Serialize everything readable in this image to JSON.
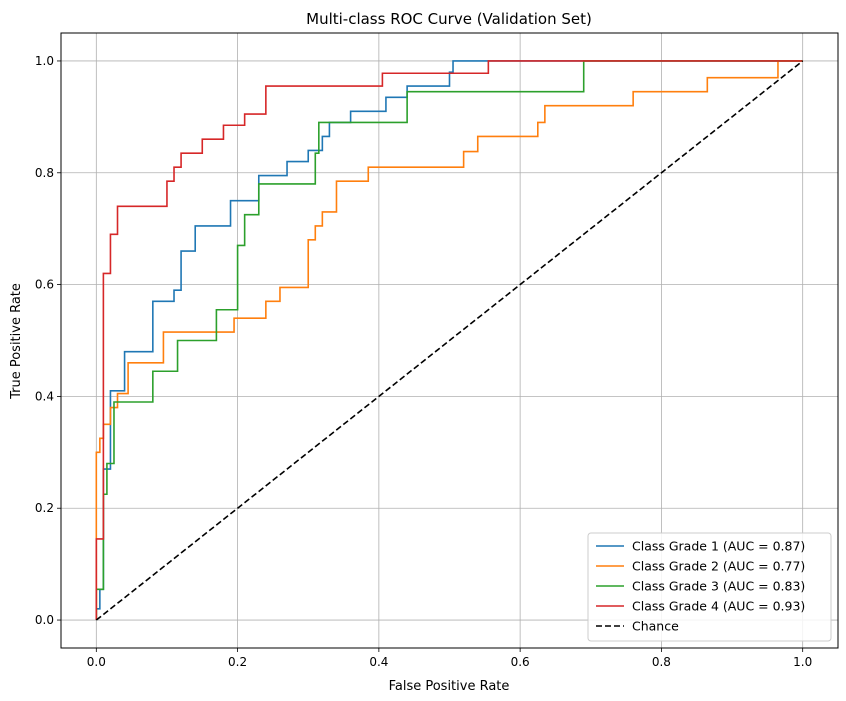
{
  "chart_data": {
    "type": "line",
    "title": "Multi-class ROC Curve (Validation Set)",
    "xlabel": "False Positive Rate",
    "ylabel": "True Positive Rate",
    "xlim": [
      -0.05,
      1.05
    ],
    "ylim": [
      -0.05,
      1.05
    ],
    "xticks": [
      0.0,
      0.2,
      0.4,
      0.6,
      0.8,
      1.0
    ],
    "yticks": [
      0.0,
      0.2,
      0.4,
      0.6,
      0.8,
      1.0
    ],
    "xtick_labels": [
      "0.0",
      "0.2",
      "0.4",
      "0.6",
      "0.8",
      "1.0"
    ],
    "ytick_labels": [
      "0.0",
      "0.2",
      "0.4",
      "0.6",
      "0.8",
      "1.0"
    ],
    "grid": true,
    "legend_position": "lower-right",
    "series": [
      {
        "name": "Class Grade 1 (AUC = 0.87)",
        "color": "#1f77b4",
        "style": "solid",
        "x": [
          0.0,
          0.0,
          0.005,
          0.005,
          0.01,
          0.01,
          0.02,
          0.02,
          0.04,
          0.04,
          0.055,
          0.055,
          0.08,
          0.08,
          0.11,
          0.11,
          0.12,
          0.12,
          0.14,
          0.14,
          0.19,
          0.19,
          0.23,
          0.23,
          0.24,
          0.24,
          0.27,
          0.27,
          0.3,
          0.3,
          0.32,
          0.32,
          0.33,
          0.33,
          0.36,
          0.36,
          0.41,
          0.41,
          0.44,
          0.44,
          0.5,
          0.5,
          0.505,
          0.505,
          1.0
        ],
        "y": [
          0.0,
          0.02,
          0.02,
          0.055,
          0.055,
          0.27,
          0.27,
          0.41,
          0.41,
          0.48,
          0.48,
          0.48,
          0.48,
          0.57,
          0.57,
          0.59,
          0.59,
          0.66,
          0.66,
          0.705,
          0.705,
          0.75,
          0.75,
          0.795,
          0.795,
          0.795,
          0.795,
          0.82,
          0.82,
          0.84,
          0.84,
          0.865,
          0.865,
          0.89,
          0.89,
          0.91,
          0.91,
          0.935,
          0.935,
          0.955,
          0.955,
          0.98,
          0.98,
          1.0,
          1.0
        ]
      },
      {
        "name": "Class Grade 2 (AUC = 0.77)",
        "color": "#ff7f0e",
        "style": "solid",
        "x": [
          0.0,
          0.0,
          0.005,
          0.005,
          0.01,
          0.01,
          0.02,
          0.02,
          0.03,
          0.03,
          0.045,
          0.045,
          0.095,
          0.095,
          0.195,
          0.195,
          0.24,
          0.24,
          0.26,
          0.26,
          0.3,
          0.3,
          0.31,
          0.31,
          0.32,
          0.32,
          0.34,
          0.34,
          0.385,
          0.385,
          0.52,
          0.52,
          0.54,
          0.54,
          0.625,
          0.625,
          0.635,
          0.635,
          0.76,
          0.76,
          0.865,
          0.865,
          0.965,
          0.965,
          1.0
        ],
        "y": [
          0.0,
          0.3,
          0.3,
          0.325,
          0.325,
          0.35,
          0.35,
          0.38,
          0.38,
          0.405,
          0.405,
          0.46,
          0.46,
          0.515,
          0.515,
          0.54,
          0.54,
          0.57,
          0.57,
          0.595,
          0.595,
          0.68,
          0.68,
          0.705,
          0.705,
          0.73,
          0.73,
          0.785,
          0.785,
          0.81,
          0.81,
          0.838,
          0.838,
          0.865,
          0.865,
          0.89,
          0.89,
          0.92,
          0.92,
          0.945,
          0.945,
          0.97,
          0.97,
          1.0,
          1.0
        ]
      },
      {
        "name": "Class Grade 3 (AUC = 0.83)",
        "color": "#2ca02c",
        "style": "solid",
        "x": [
          0.0,
          0.0,
          0.01,
          0.01,
          0.015,
          0.015,
          0.025,
          0.025,
          0.04,
          0.04,
          0.08,
          0.08,
          0.115,
          0.115,
          0.17,
          0.17,
          0.2,
          0.2,
          0.21,
          0.21,
          0.23,
          0.23,
          0.31,
          0.31,
          0.315,
          0.315,
          0.44,
          0.44,
          0.69,
          0.69,
          1.0
        ],
        "y": [
          0.0,
          0.055,
          0.055,
          0.225,
          0.225,
          0.28,
          0.28,
          0.39,
          0.39,
          0.39,
          0.39,
          0.445,
          0.445,
          0.5,
          0.5,
          0.555,
          0.555,
          0.67,
          0.67,
          0.725,
          0.725,
          0.78,
          0.78,
          0.835,
          0.835,
          0.89,
          0.89,
          0.945,
          0.945,
          1.0,
          1.0
        ]
      },
      {
        "name": "Class Grade 4 (AUC = 0.93)",
        "color": "#d62728",
        "style": "solid",
        "x": [
          0.0,
          0.0,
          0.01,
          0.01,
          0.02,
          0.02,
          0.03,
          0.03,
          0.1,
          0.1,
          0.11,
          0.11,
          0.12,
          0.12,
          0.15,
          0.15,
          0.18,
          0.18,
          0.21,
          0.21,
          0.24,
          0.24,
          0.405,
          0.405,
          0.555,
          0.555,
          1.0
        ],
        "y": [
          0.0,
          0.145,
          0.145,
          0.62,
          0.62,
          0.69,
          0.69,
          0.74,
          0.74,
          0.785,
          0.785,
          0.81,
          0.81,
          0.835,
          0.835,
          0.86,
          0.86,
          0.885,
          0.885,
          0.905,
          0.905,
          0.955,
          0.955,
          0.978,
          0.978,
          1.0,
          1.0
        ]
      },
      {
        "name": "Chance",
        "color": "#000000",
        "style": "dashed",
        "x": [
          0.0,
          1.0
        ],
        "y": [
          0.0,
          1.0
        ]
      }
    ]
  }
}
